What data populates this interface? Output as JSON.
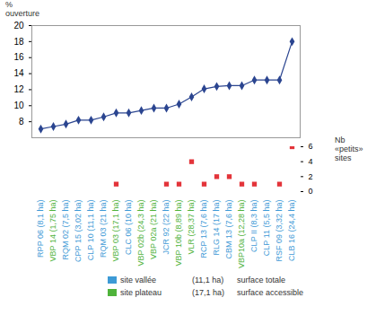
{
  "chart_data": {
    "type": "line",
    "ylabel": "%\nouverture",
    "y2label": "Nb\n«petits»\nsites",
    "categories": [
      "RPP 06 (8,1 ha)",
      "VBP 14 (1,75 ha)",
      "RQM 02 (7,5 ha)",
      "CPP 15 (3,02 ha)",
      "CLP 10 (11,1 ha)",
      "RQM 03 (21 ha)",
      "VBP 03 (17,1 ha)",
      "CLC 06 (10 ha)",
      "VBP 02b (24,3 ha)",
      "VBP 02a (21 ha)",
      "JCR 92 (22 ha)",
      "VBP 10b (8,89 ha)",
      "VLR (28,37 ha)",
      "RCP 13 (7,6 ha)",
      "RLG 14 (17 ha)",
      "CBM 13 (7,6 ha)",
      "VBP10a (12,28 ha)",
      "CLP II (8,3 ha)",
      "CLP 11 (5,5 ha)",
      "RSF 09 (3,32 ha)",
      "CLB 16 (24,4 ha)"
    ],
    "category_groups": [
      "site vallée",
      "site plateau",
      "site vallée",
      "site vallée",
      "site vallée",
      "site vallée",
      "site plateau",
      "site vallée",
      "site plateau",
      "site plateau",
      "site vallée",
      "site plateau",
      "site plateau",
      "site vallée",
      "site vallée",
      "site vallée",
      "site plateau",
      "site vallée",
      "site vallée",
      "site vallée",
      "site vallée"
    ],
    "groups": [
      {
        "name": "site vallée",
        "color": "#3d9ad6",
        "example": "(11,1 ha)",
        "example_text": "surface totale"
      },
      {
        "name": "site plateau",
        "color": "#4fb33b",
        "example": "(17,1 ha)",
        "example_text": "surface accessible"
      }
    ],
    "series": [
      {
        "name": "% ouverture",
        "type": "line",
        "color": "#2b4590",
        "marker": "diamond",
        "values": [
          7.1,
          7.4,
          7.7,
          8.2,
          8.2,
          8.6,
          9.1,
          9.1,
          9.4,
          9.7,
          9.7,
          10.2,
          11.1,
          12.1,
          12.4,
          12.5,
          12.5,
          13.2,
          13.2,
          13.2,
          18
        ]
      },
      {
        "name": "Nb «petits» sites",
        "type": "scatter",
        "color": "#e3343a",
        "marker": "square",
        "axis": "y2",
        "values": [
          null,
          null,
          null,
          null,
          null,
          null,
          1,
          null,
          null,
          null,
          1,
          1,
          4,
          1,
          2,
          2,
          1,
          1,
          null,
          1,
          6
        ]
      }
    ],
    "ylim": [
      6,
      20
    ],
    "yticks": [
      8,
      10,
      12,
      14,
      16,
      18,
      20
    ],
    "y2lim": [
      0,
      6
    ],
    "y2ticks": [
      0,
      2,
      4,
      6
    ],
    "grid": false
  }
}
